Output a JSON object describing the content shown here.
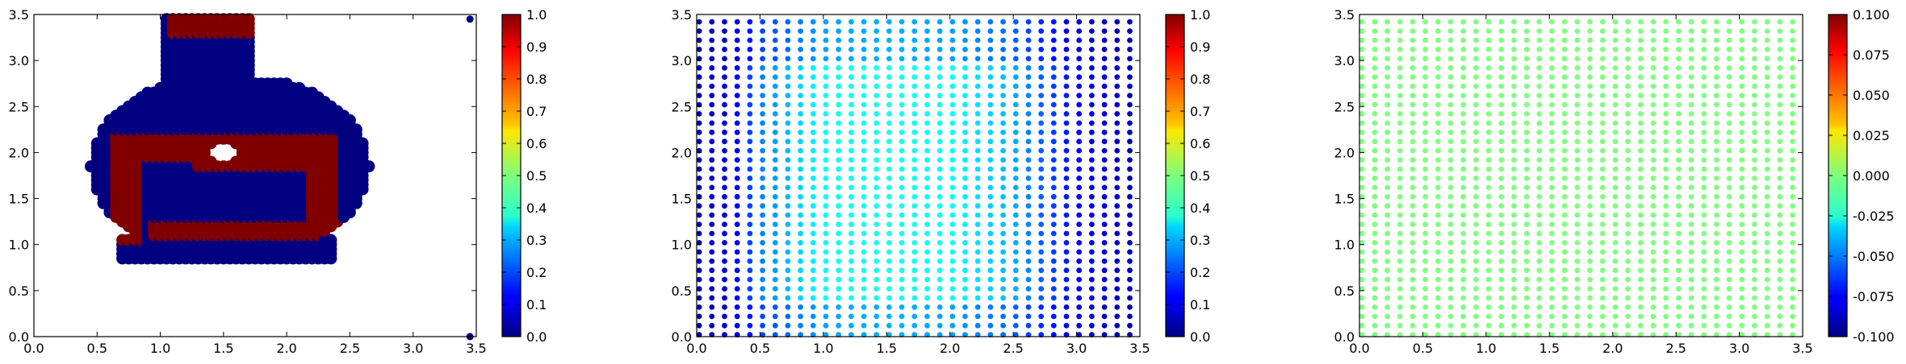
{
  "colormap": "jet",
  "chart_data": [
    {
      "type": "scatter",
      "xlim": [
        0,
        3.5
      ],
      "ylim": [
        0,
        3.5
      ],
      "xticks": [
        "0.0",
        "0.5",
        "1.0",
        "1.5",
        "2.0",
        "2.5",
        "3.0",
        "3.5"
      ],
      "yticks": [
        "0.0",
        "0.5",
        "1.0",
        "1.5",
        "2.0",
        "2.5",
        "3.0",
        "3.5"
      ],
      "colorbar": {
        "vmin": 0,
        "vmax": 1,
        "ticks": [
          "0.0",
          "0.1",
          "0.2",
          "0.3",
          "0.4",
          "0.5",
          "0.6",
          "0.7",
          "0.8",
          "0.9",
          "1.0"
        ]
      },
      "grid": false,
      "marker_size": "large",
      "description_of_values": "binary: 1 inside inner ring, 0 inside outer flask shape; outliers at (3.45, 3.45) and (3.45, 0.0)",
      "shape": {
        "outer_neck": {
          "x": [
            1.05,
            1.75
          ],
          "y": [
            2.6,
            3.45
          ]
        },
        "outer_body": {
          "center": [
            1.55,
            1.85
          ],
          "rx": 1.1,
          "ry": 1.0
        },
        "outer_bottom": {
          "x": [
            0.7,
            2.35
          ],
          "y": [
            0.85,
            1.1
          ]
        },
        "hole": {
          "center": [
            1.5,
            2.0
          ],
          "r": 0.12
        },
        "ring": [
          {
            "x": [
              0.62,
              0.88
            ],
            "y": [
              1.05,
              2.2
            ]
          },
          {
            "x": [
              0.62,
              1.45
            ],
            "y": [
              1.95,
              2.2
            ]
          },
          {
            "x": [
              1.3,
              2.4
            ],
            "y": [
              1.85,
              2.2
            ]
          },
          {
            "x": [
              2.2,
              2.42
            ],
            "y": [
              1.1,
              2.2
            ]
          },
          {
            "x": [
              0.95,
              2.42
            ],
            "y": [
              1.1,
              1.3
            ]
          }
        ],
        "neck_red": {
          "x": [
            1.1,
            1.8
          ],
          "y": [
            3.25,
            3.45
          ]
        }
      },
      "outliers": [
        {
          "x": 3.45,
          "y": 3.45,
          "value": 0
        },
        {
          "x": 3.45,
          "y": 0.0,
          "value": 0
        }
      ]
    },
    {
      "type": "scatter",
      "xlim": [
        0,
        3.5
      ],
      "ylim": [
        0,
        3.5
      ],
      "xticks": [
        "0.0",
        "0.5",
        "1.0",
        "1.5",
        "2.0",
        "2.5",
        "3.0",
        "3.5"
      ],
      "yticks": [
        "0.0",
        "0.5",
        "1.0",
        "1.5",
        "2.0",
        "2.5",
        "3.0",
        "3.5"
      ],
      "colorbar": {
        "vmin": 0,
        "vmax": 1,
        "ticks": [
          "0.0",
          "0.1",
          "0.2",
          "0.3",
          "0.4",
          "0.5",
          "0.6",
          "0.7",
          "0.8",
          "0.9",
          "1.0"
        ]
      },
      "grid": false,
      "marker_size": "small",
      "points": {
        "x_start": 0.02,
        "x_end": 3.42,
        "x_count": 35,
        "y_start": 0.02,
        "y_end": 3.42,
        "y_count": 35
      },
      "value_profile": {
        "x": [
          0.0,
          0.3,
          0.5,
          1.0,
          1.5,
          2.0,
          2.5,
          3.0,
          3.45
        ],
        "v": [
          0.05,
          0.1,
          0.25,
          0.38,
          0.4,
          0.38,
          0.3,
          0.12,
          0.05
        ]
      }
    },
    {
      "type": "scatter",
      "xlim": [
        0,
        3.5
      ],
      "ylim": [
        0,
        3.5
      ],
      "xticks": [
        "0.0",
        "0.5",
        "1.0",
        "1.5",
        "2.0",
        "2.5",
        "3.0",
        "3.5"
      ],
      "yticks": [
        "0.0",
        "0.5",
        "1.0",
        "1.5",
        "2.0",
        "2.5",
        "3.0",
        "3.5"
      ],
      "colorbar": {
        "vmin": -0.1,
        "vmax": 0.1,
        "ticks": [
          "-0.100",
          "-0.075",
          "-0.050",
          "-0.025",
          "0.000",
          "0.025",
          "0.050",
          "0.075",
          "0.100"
        ]
      },
      "grid": false,
      "marker_size": "small",
      "points": {
        "x_start": 0.02,
        "x_end": 3.42,
        "x_count": 35,
        "y_start": 0.02,
        "y_end": 3.42,
        "y_count": 35
      },
      "constant_value": 0.0
    }
  ]
}
